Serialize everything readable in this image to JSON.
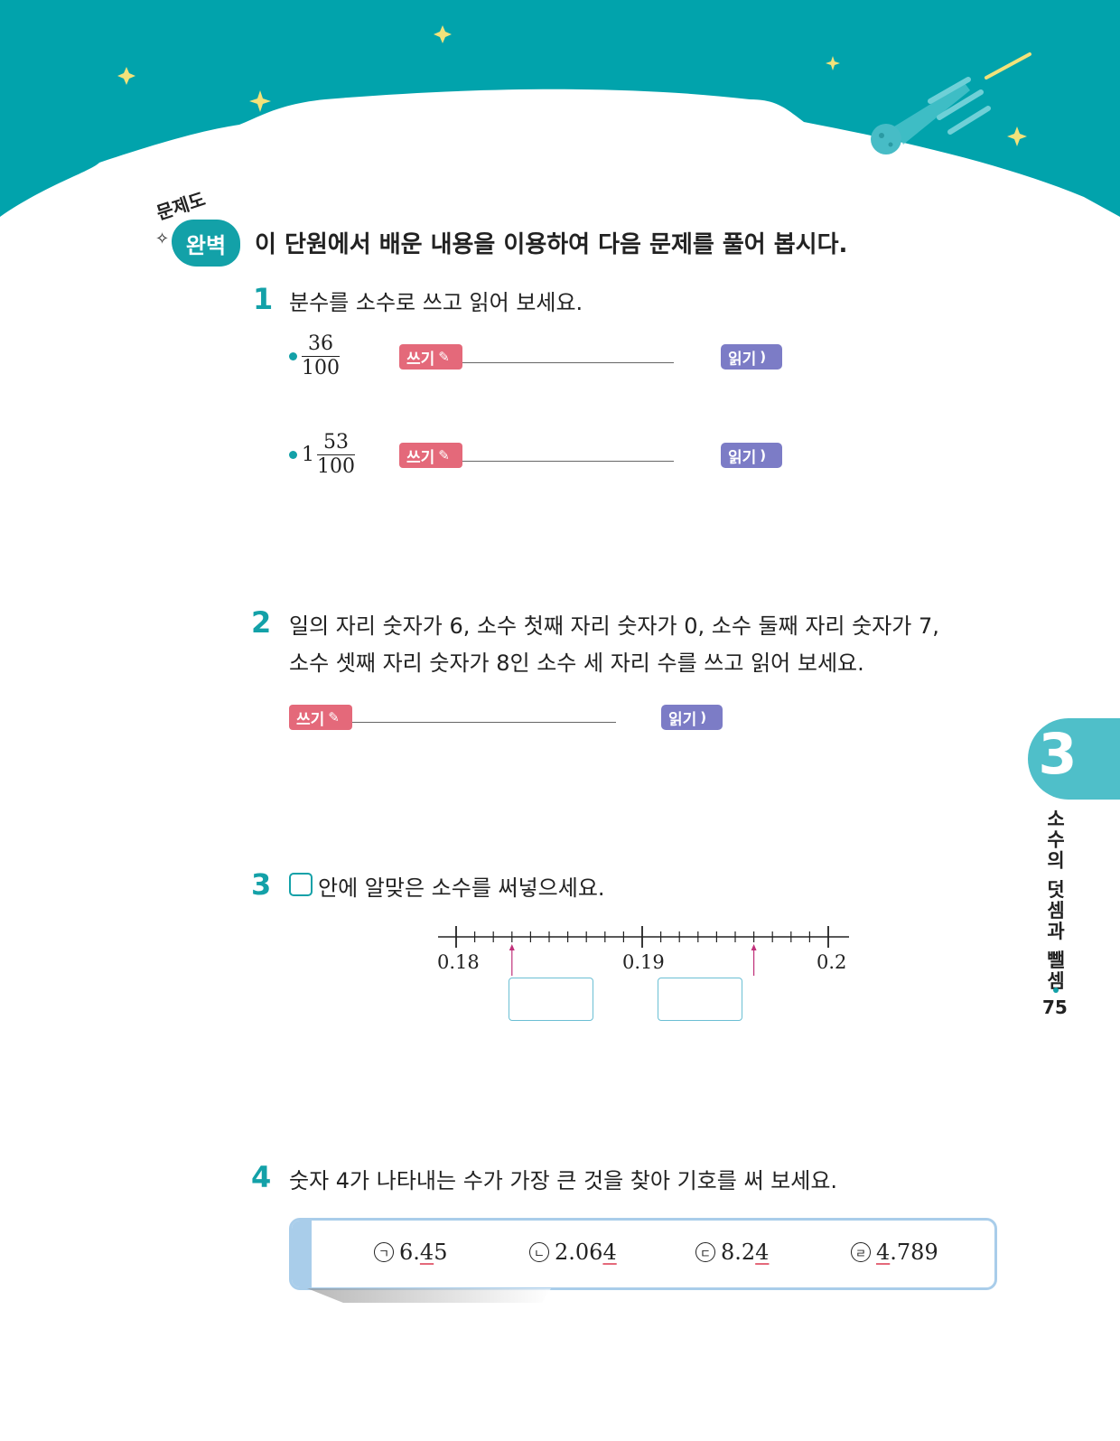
{
  "header": {
    "badge_top": "문제도",
    "badge_main": "완벽",
    "instruction": "이 단원에서 배운 내용을 이용하여 다음 문제를 풀어 봅시다."
  },
  "labels": {
    "write": "쓰기",
    "read": "읽기"
  },
  "problems": [
    {
      "number": "1",
      "text": "분수를 소수로 쓰고 읽어 보세요.",
      "items": [
        {
          "whole": "",
          "numerator": "36",
          "denominator": "100"
        },
        {
          "whole": "1",
          "numerator": "53",
          "denominator": "100"
        }
      ]
    },
    {
      "number": "2",
      "text_line1": "일의 자리 숫자가 6, 소수 첫째 자리 숫자가 0, 소수 둘째 자리 숫자가 7,",
      "text_line2": "소수 셋째 자리 숫자가 8인 소수 세 자리 수를 쓰고 읽어 보세요."
    },
    {
      "number": "3",
      "text": "안에 알맞은 소수를 써넣으세요.",
      "number_line": {
        "labels": [
          "0.18",
          "0.19",
          "0.2"
        ],
        "arrow_values": [
          0.183,
          0.196
        ]
      }
    },
    {
      "number": "4",
      "text": "숫자 4가 나타내는 수가 가장 큰 것을 찾아 기호를 써 보세요.",
      "choices": [
        {
          "symbol": "ㄱ",
          "pre": "6.",
          "digit": "4",
          "post": "5"
        },
        {
          "symbol": "ㄴ",
          "pre": "2.06",
          "digit": "4",
          "post": ""
        },
        {
          "symbol": "ㄷ",
          "pre": "8.2",
          "digit": "4",
          "post": ""
        },
        {
          "symbol": "ㄹ",
          "pre": "",
          "digit": "4",
          "post": ".789"
        }
      ]
    }
  ],
  "side": {
    "chapter": "3",
    "title": "소수의 덧셈과 뺄셈",
    "page": "75"
  },
  "colors": {
    "teal": "#13a1a8",
    "write_tag": "#e4697a",
    "read_tag": "#7c7cc6",
    "star": "#f3e27a"
  }
}
